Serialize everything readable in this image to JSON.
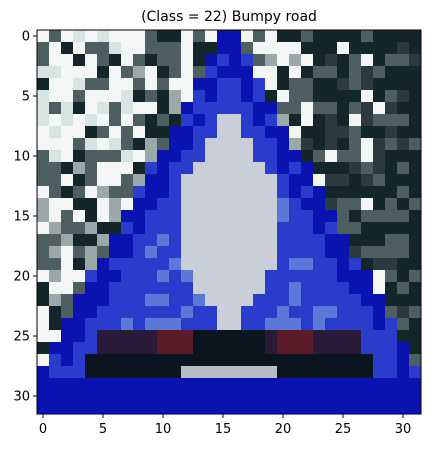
{
  "figure": {
    "title": "(Class = 22) Bumpy road",
    "x_ticks": [
      "0",
      "5",
      "10",
      "15",
      "20",
      "25",
      "30"
    ],
    "y_ticks": [
      "0",
      "5",
      "10",
      "15",
      "20",
      "25",
      "30"
    ],
    "image_size": [
      32,
      32
    ],
    "palette": {
      "outer_blue": "#0a12b0",
      "border_blue": "#2a3ccc",
      "inner_light": "#c9ced8",
      "dark_red": "#5a1c26",
      "dark": "#0b1520",
      "white": "#f4f6f6",
      "foliage_dark": "#13262a",
      "foliage_mid": "#4e5f62"
    }
  }
}
